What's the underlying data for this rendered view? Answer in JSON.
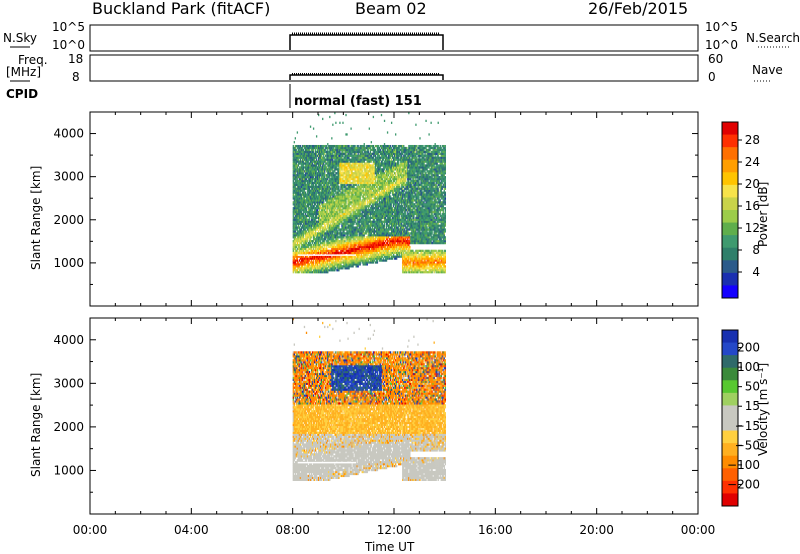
{
  "header": {
    "site": "Buckland Park (fitACF)",
    "beam": "Beam 02",
    "date": "26/Feb/2015"
  },
  "panels": {
    "nsky_label": "N.Sky",
    "nsky_ticks": [
      "10^5",
      "10^0"
    ],
    "nsearch_label": "N.Search",
    "nsearch_ticks": [
      "10^5",
      "10^0"
    ],
    "freq_label": "Freq.",
    "freq_unit": "[MHz]",
    "freq_ticks": [
      "18",
      "8"
    ],
    "nave_label": "Nave",
    "nave_ticks": [
      "60",
      "0"
    ],
    "cpid_label": "CPID",
    "cpid_value": "normal (fast) 151"
  },
  "chart_data": [
    {
      "type": "heatmap",
      "name": "power",
      "ylabel": "Slant Range [km]",
      "y_ticks": [
        1000,
        2000,
        3000,
        4000
      ],
      "ylim": [
        0,
        4500
      ],
      "x_range_hours": [
        0,
        24
      ],
      "data_window_hours": [
        8,
        14
      ],
      "colorbar_title": "Power [dB]",
      "colorbar_ticks": [
        "28",
        "24",
        "20",
        "16",
        "12",
        "8",
        "4"
      ],
      "colors": [
        "#e00000",
        "#ff3000",
        "#ff7000",
        "#ff9e00",
        "#ffc400",
        "#f7e34a",
        "#c9d34a",
        "#9ccc4a",
        "#5fae4c",
        "#3f9a6f",
        "#2f7f6a",
        "#2a5a8a",
        "#1a2fb0",
        "#1400ff"
      ],
      "bands": [
        {
          "t": [
            8.0,
            14.0
          ],
          "r": [
            800,
            1200
          ],
          "level": "high"
        },
        {
          "t": [
            8.0,
            12.5
          ],
          "r": [
            1200,
            2200
          ],
          "level": "medium"
        },
        {
          "t": [
            9.5,
            12.0
          ],
          "r": [
            2800,
            3300
          ],
          "level": "medium"
        }
      ]
    },
    {
      "type": "heatmap",
      "name": "velocity",
      "ylabel": "Slant Range [km]",
      "xlabel": "Time UT",
      "x_ticks": [
        "00:00",
        "04:00",
        "08:00",
        "12:00",
        "16:00",
        "20:00",
        "00:00"
      ],
      "y_ticks": [
        1000,
        2000,
        3000,
        4000
      ],
      "ylim": [
        0,
        4500
      ],
      "colorbar_title": "Velocity [m s⁻¹]",
      "colorbar_ticks": [
        "200",
        "100",
        "50",
        "15",
        "−15",
        "−50",
        "−100",
        "−200"
      ],
      "colors": [
        "#1730b0",
        "#2448c8",
        "#2f6a6a",
        "#3a8a3a",
        "#58c830",
        "#9fd060",
        "#c8c8c0",
        "#c8c8c0",
        "#ffd040",
        "#ffb020",
        "#ff8c00",
        "#ff6000",
        "#ff3000",
        "#e00000"
      ]
    }
  ]
}
